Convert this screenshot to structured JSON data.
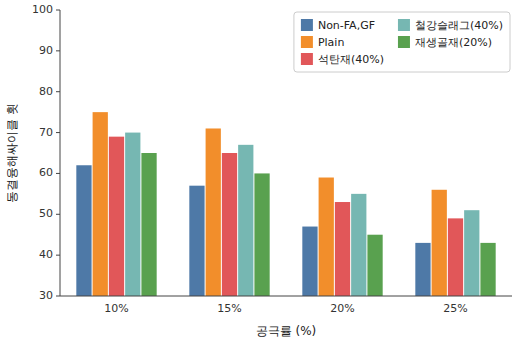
{
  "chart_data": {
    "type": "bar",
    "xlabel": "공극률 (%)",
    "ylabel": "동결융해싸이클 횟",
    "categories": [
      "10%",
      "15%",
      "20%",
      "25%"
    ],
    "series": [
      {
        "name": "Non-FA,GF",
        "color": "#4e79a7",
        "values": [
          62,
          57,
          47,
          43
        ]
      },
      {
        "name": "Plain",
        "color": "#f28e2b",
        "values": [
          75,
          71,
          59,
          56
        ]
      },
      {
        "name": "석탄재(40%)",
        "color": "#e15759",
        "values": [
          69,
          65,
          53,
          49
        ]
      },
      {
        "name": "철강슬래그(40%)",
        "color": "#76b7b2",
        "values": [
          70,
          67,
          55,
          51
        ]
      },
      {
        "name": "재생골재(20%)",
        "color": "#59a14f",
        "values": [
          65,
          60,
          45,
          43
        ]
      }
    ],
    "ylim": [
      30,
      100
    ],
    "yticks": [
      30,
      40,
      50,
      60,
      70,
      80,
      90,
      100
    ],
    "grid": false,
    "legend": "upper right"
  }
}
